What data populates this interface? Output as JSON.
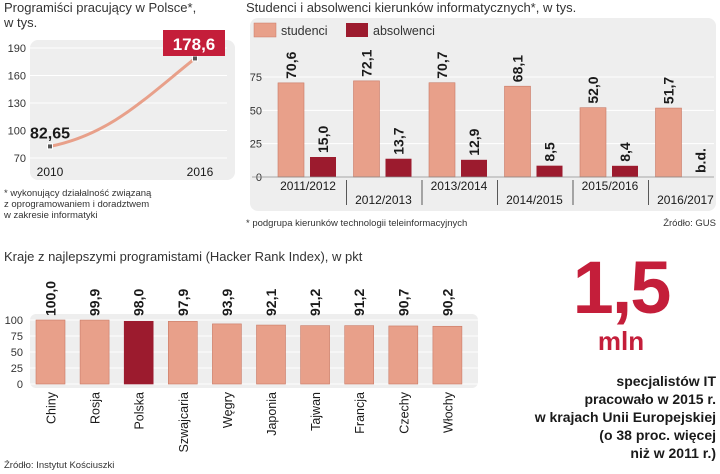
{
  "colors": {
    "salmon": "#e8a08a",
    "salmon_stroke": "#c97a66",
    "dark_red": "#9c1b2e",
    "accent_red": "#c41e3a",
    "panel_bg": "#eeeeee"
  },
  "panel1": {
    "title_line1": "Programiści pracujący w Polsce*,",
    "title_line2": "w tys.",
    "note": "* wykonujący działalność związaną\nz oprogramowaniem i doradztwem\nw zakresie informatyki"
  },
  "panel2": {
    "title": "Studenci i absolwenci kierunków informatycznych*, w tys.",
    "note": "* podgrupa kierunków technologii teleinformacyjnych",
    "source": "Źródło: GUS"
  },
  "panel3": {
    "title": "Kraje z najlepszymi programistami (Hacker Rank Index), w pkt",
    "source": "Źródło: Instytut Kościuszki"
  },
  "highlight": {
    "value": "1,5",
    "unit": "mln",
    "lines": [
      "specjalistów IT",
      "pracowało w 2015 r.",
      "w krajach Unii Europejskiej",
      "(o 38 proc. więcej",
      "niż w 2011 r.)"
    ]
  },
  "chart_data": [
    {
      "type": "line",
      "x": [
        "2010",
        "2016"
      ],
      "y": [
        82.65,
        178.6
      ],
      "y_labels": [
        "82,65",
        "178,6"
      ],
      "ylim": [
        70,
        190
      ],
      "yticks": [
        70,
        100,
        130,
        160,
        190
      ],
      "grid": true
    },
    {
      "type": "bar",
      "categories": [
        "2011/2012",
        "2012/2013",
        "2013/2014",
        "2014/2015",
        "2015/2016",
        "2016/2017"
      ],
      "series": [
        {
          "name": "studenci",
          "values": [
            70.6,
            72.1,
            70.7,
            68.1,
            52.0,
            51.7
          ],
          "labels": [
            "70,6",
            "72,1",
            "70,7",
            "68,1",
            "52,0",
            "51,7"
          ]
        },
        {
          "name": "absolwenci",
          "values": [
            15.0,
            13.7,
            12.9,
            8.5,
            8.4,
            null
          ],
          "labels": [
            "15,0",
            "13,7",
            "12,9",
            "8,5",
            "8,4",
            "b.d."
          ]
        }
      ],
      "yticks": [
        0,
        25,
        50,
        75
      ],
      "ylim": [
        0,
        80
      ],
      "legend": "top-left",
      "grid": true
    },
    {
      "type": "bar",
      "categories": [
        "Chiny",
        "Rosja",
        "Polska",
        "Szwajcaria",
        "Węgry",
        "Japonia",
        "Tajwan",
        "Francja",
        "Czechy",
        "Włochy"
      ],
      "values": [
        100.0,
        99.9,
        98.0,
        97.9,
        93.9,
        92.1,
        91.2,
        91.2,
        90.7,
        90.2
      ],
      "labels": [
        "100,0",
        "99,9",
        "98,0",
        "97,9",
        "93,9",
        "92,1",
        "91,2",
        "91,2",
        "90,7",
        "90,2"
      ],
      "highlight": "Polska",
      "yticks": [
        0,
        25,
        50,
        75,
        100
      ],
      "ylim": [
        0,
        100
      ],
      "grid": true
    }
  ]
}
